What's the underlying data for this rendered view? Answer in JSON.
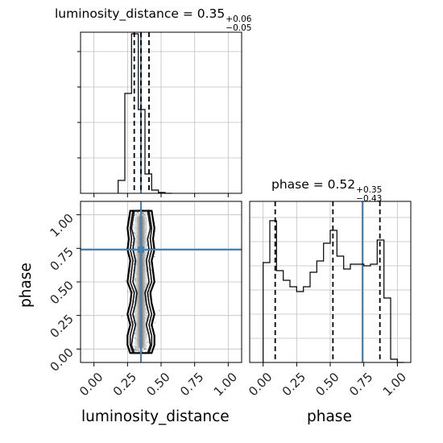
{
  "chart_data": {
    "type": "corner",
    "parameters": [
      "luminosity_distance",
      "phase"
    ],
    "truth_color": "#4682b4",
    "truths": {
      "luminosity_distance": 0.35,
      "phase": 0.74
    },
    "titles": {
      "luminosity_distance": {
        "name": "luminosity_distance",
        "median": "0.35",
        "plus": "+0.06",
        "minus": "−0.05"
      },
      "phase": {
        "name": "phase",
        "median": "0.52",
        "plus": "+0.35",
        "minus": "−0.43"
      }
    },
    "axis_labels": {
      "x1": "luminosity_distance",
      "x2": "phase",
      "y2": "phase"
    },
    "x_ticks": [
      "0.00",
      "0.25",
      "0.50",
      "0.75",
      "1.00"
    ],
    "y_ticks": [
      "0.00",
      "0.25",
      "0.50",
      "0.75",
      "1.00"
    ],
    "tick_values": [
      0,
      0.25,
      0.5,
      0.75,
      1.0
    ],
    "xlim": [
      -0.1,
      1.1
    ],
    "ylim": [
      -0.1,
      1.1
    ],
    "grid": true,
    "hist_luminosity_distance": {
      "edges": [
        0.18,
        0.23,
        0.28,
        0.33,
        0.38,
        0.43,
        0.48,
        0.53,
        0.58
      ],
      "counts": [
        0.08,
        0.62,
        0.99,
        0.52,
        0.12,
        0.02,
        0.005,
        0.0
      ],
      "quantiles": [
        0.3,
        0.35,
        0.41
      ]
    },
    "hist_phase": {
      "edges": [
        0.0,
        0.05,
        0.1,
        0.15,
        0.2,
        0.25,
        0.3,
        0.35,
        0.4,
        0.45,
        0.5,
        0.55,
        0.6,
        0.65,
        0.7,
        0.75,
        0.8,
        0.85,
        0.9,
        0.95,
        1.0,
        1.05
      ],
      "counts": [
        0.62,
        0.88,
        0.57,
        0.51,
        0.47,
        0.44,
        0.47,
        0.56,
        0.63,
        0.74,
        0.82,
        0.66,
        0.58,
        0.61,
        0.61,
        0.6,
        0.61,
        0.76,
        0.4,
        0.02,
        0.0
      ],
      "quantiles": [
        0.09,
        0.52,
        0.87
      ]
    },
    "contours": [
      {
        "level": "1",
        "half_widths": [
          0.05,
          0.07,
          0.06,
          0.04,
          0.06,
          0.04,
          0.03,
          0.06,
          0.05,
          0.04,
          0.06,
          0.05,
          0.07,
          0.05
        ]
      },
      {
        "level": "2",
        "half_widths": [
          0.06,
          0.08,
          0.08,
          0.06,
          0.08,
          0.06,
          0.05,
          0.08,
          0.07,
          0.06,
          0.08,
          0.07,
          0.08,
          0.06
        ]
      },
      {
        "level": "3",
        "half_widths": [
          0.08,
          0.1,
          0.1,
          0.08,
          0.1,
          0.08,
          0.07,
          0.1,
          0.09,
          0.08,
          0.1,
          0.09,
          0.1,
          0.08
        ]
      }
    ],
    "contour_y": [
      -0.03,
      0.03,
      0.1,
      0.18,
      0.26,
      0.34,
      0.42,
      0.5,
      0.58,
      0.66,
      0.74,
      0.82,
      0.9,
      1.03
    ],
    "contour_center": 0.35
  }
}
